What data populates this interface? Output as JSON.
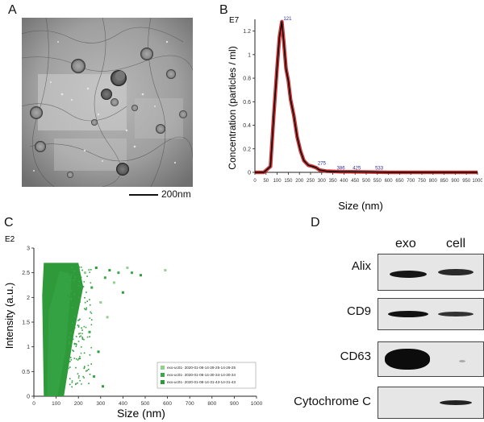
{
  "panels": {
    "a": {
      "letter": "A",
      "scale_label": "200nm"
    },
    "b": {
      "letter": "B"
    },
    "c": {
      "letter": "C"
    },
    "d": {
      "letter": "D"
    }
  },
  "chart_data": [
    {
      "type": "line",
      "panel": "B",
      "xlabel": "Size (nm)",
      "ylabel": "Concentration (particles / ml)",
      "y_exponent": "E7",
      "xlim": [
        0,
        1000
      ],
      "ylim": [
        0,
        1.3
      ],
      "x_ticks": [
        "0",
        "50",
        "100",
        "150",
        "200",
        "250",
        "300",
        "350",
        "400",
        "450",
        "500",
        "550",
        "600",
        "650",
        "700",
        "750",
        "800",
        "850",
        "900",
        "950",
        "1000"
      ],
      "y_ticks": [
        "0",
        "0.2",
        "0.4",
        "0.6",
        "0.8",
        "1",
        "1.2"
      ],
      "x": [
        0,
        40,
        70,
        85,
        100,
        110,
        121,
        130,
        140,
        150,
        160,
        175,
        190,
        205,
        220,
        240,
        260,
        275,
        290,
        320,
        386,
        425,
        533,
        600,
        1000
      ],
      "y": [
        0,
        0,
        0.05,
        0.5,
        0.9,
        1.15,
        1.28,
        1.1,
        0.88,
        0.78,
        0.62,
        0.48,
        0.3,
        0.18,
        0.1,
        0.06,
        0.05,
        0.04,
        0.02,
        0.01,
        0.005,
        0.005,
        0.003,
        0,
        0
      ],
      "peak_labels": [
        {
          "x": 121,
          "y": 1.28,
          "text": "121"
        },
        {
          "x": 275,
          "y": 0.05,
          "text": "275"
        },
        {
          "x": 386,
          "y": 0.01,
          "text": "386"
        },
        {
          "x": 425,
          "y": 0.01,
          "text": "425"
        },
        {
          "x": 533,
          "y": 0.01,
          "text": "533"
        }
      ],
      "colors": {
        "mean": "#000000",
        "error": "#c41818",
        "peak_label": "#2a2a9a"
      }
    },
    {
      "type": "scatter",
      "panel": "C",
      "xlabel": "Size (nm)",
      "ylabel": "Intensity (a.u.)",
      "y_exponent": "E2",
      "xlim": [
        0,
        1000
      ],
      "ylim": [
        0,
        3.0
      ],
      "x_ticks": [
        "0",
        "100",
        "200",
        "300",
        "400",
        "500",
        "600",
        "700",
        "800",
        "900",
        "1000"
      ],
      "y_ticks": [
        "0",
        "0.5",
        "1",
        "1.5",
        "2",
        "2.5",
        "3"
      ],
      "legend": [
        "exo-uc01- 2020-01-08-14-29-25-14-29-25",
        "exo-uc01- 2020-01-08-14-30-34-14-30-34",
        "exo-uc01- 2020-01-08-14-31-43-14-31-43"
      ],
      "legend_position": "bottom-right",
      "colors": [
        "#8fd08a",
        "#3aa84a",
        "#2e9a3a"
      ],
      "main_cloud": {
        "x_range": [
          30,
          200
        ],
        "y_range": [
          0,
          2.7
        ],
        "density": "very high"
      },
      "outliers": [
        {
          "x": 230,
          "y": 2.5
        },
        {
          "x": 260,
          "y": 2.2
        },
        {
          "x": 280,
          "y": 2.6
        },
        {
          "x": 300,
          "y": 1.9
        },
        {
          "x": 320,
          "y": 2.4
        },
        {
          "x": 340,
          "y": 2.55
        },
        {
          "x": 360,
          "y": 2.3
        },
        {
          "x": 380,
          "y": 2.5
        },
        {
          "x": 400,
          "y": 2.1
        },
        {
          "x": 420,
          "y": 2.6
        },
        {
          "x": 440,
          "y": 2.5
        },
        {
          "x": 480,
          "y": 2.45
        },
        {
          "x": 590,
          "y": 2.55
        },
        {
          "x": 250,
          "y": 1.3
        },
        {
          "x": 290,
          "y": 0.9
        },
        {
          "x": 330,
          "y": 1.6
        },
        {
          "x": 270,
          "y": 0.4
        },
        {
          "x": 310,
          "y": 0.2
        }
      ]
    }
  ],
  "western_blot": {
    "columns": [
      "exo",
      "cell"
    ],
    "rows": [
      {
        "label": "Alix",
        "exo_band": 0.8,
        "cell_band": 0.6
      },
      {
        "label": "CD9",
        "exo_band": 0.85,
        "cell_band": 0.6
      },
      {
        "label": "CD63",
        "exo_band": 1.0,
        "cell_band": 0.05
      },
      {
        "label": "Cytochrome C",
        "exo_band": 0.0,
        "cell_band": 0.6
      }
    ]
  }
}
